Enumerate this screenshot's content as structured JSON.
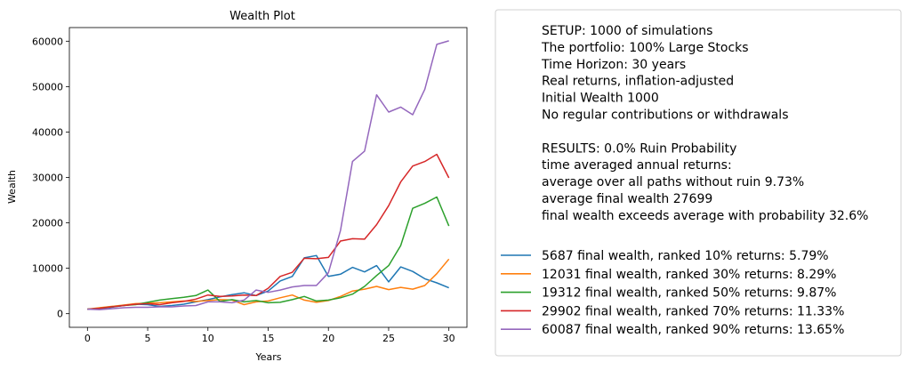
{
  "chart_data": {
    "type": "line",
    "title": "Wealth Plot",
    "xlabel": "Years",
    "ylabel": "Wealth",
    "xlim": [
      -1.5,
      31.5
    ],
    "ylim": [
      -3000,
      63000
    ],
    "xticks": [
      0,
      5,
      10,
      15,
      20,
      25,
      30
    ],
    "yticks": [
      0,
      10000,
      20000,
      30000,
      40000,
      50000,
      60000
    ],
    "x": [
      0,
      1,
      2,
      3,
      4,
      5,
      6,
      7,
      8,
      9,
      10,
      11,
      12,
      13,
      14,
      15,
      16,
      17,
      18,
      19,
      20,
      21,
      22,
      23,
      24,
      25,
      26,
      27,
      28,
      29,
      30
    ],
    "series": [
      {
        "name": "5687 final wealth, ranked 10% returns: 5.79%",
        "color": "#1f77b4",
        "values": [
          1000,
          1100,
          1400,
          1800,
          2100,
          2000,
          1600,
          1800,
          2100,
          2600,
          3100,
          3700,
          4200,
          4600,
          4000,
          5000,
          7200,
          8200,
          12300,
          12800,
          8200,
          8700,
          10200,
          9200,
          10600,
          7000,
          10300,
          9300,
          7700,
          6800,
          5687
        ]
      },
      {
        "name": "12031 final wealth, ranked 30% returns: 8.29%",
        "color": "#ff7f0e",
        "values": [
          1000,
          1300,
          1600,
          1900,
          2200,
          2300,
          2400,
          2600,
          2800,
          2700,
          2900,
          3100,
          3000,
          2000,
          2600,
          2800,
          3500,
          4100,
          3000,
          2500,
          2900,
          3800,
          5000,
          5400,
          6000,
          5300,
          5800,
          5400,
          6200,
          8800,
          12031
        ]
      },
      {
        "name": "19312 final wealth, ranked 50% returns: 9.87%",
        "color": "#2ca02c",
        "values": [
          1000,
          1200,
          1500,
          1800,
          2000,
          2500,
          3000,
          3300,
          3600,
          4000,
          5200,
          2700,
          3100,
          2600,
          2900,
          2400,
          2500,
          3100,
          3800,
          2800,
          3000,
          3500,
          4300,
          6000,
          8400,
          10600,
          15000,
          23200,
          24300,
          25700,
          19312
        ]
      },
      {
        "name": "29902 final wealth, ranked 70% returns: 11.33%",
        "color": "#d62728",
        "values": [
          1000,
          1200,
          1500,
          1800,
          2100,
          2200,
          2000,
          2400,
          2700,
          3200,
          4100,
          3800,
          3900,
          4100,
          4000,
          5600,
          8200,
          9100,
          12200,
          12100,
          12400,
          16000,
          16500,
          16400,
          19600,
          23800,
          29000,
          32500,
          33500,
          35100,
          29902
        ]
      },
      {
        "name": "60087 final wealth, ranked 90% returns: 13.65%",
        "color": "#9467bd",
        "values": [
          1000,
          900,
          1100,
          1300,
          1400,
          1400,
          1500,
          1500,
          1700,
          1800,
          2600,
          2600,
          2400,
          3000,
          5200,
          4700,
          5200,
          5900,
          6200,
          6200,
          9000,
          18300,
          33500,
          35800,
          48200,
          44400,
          45500,
          43800,
          49400,
          59300,
          60087
        ]
      }
    ]
  },
  "setup_text": [
    "SETUP: 1000 of simulations",
    "The portfolio: 100% Large Stocks",
    "Time Horizon: 30 years",
    "Real returns, inflation-adjusted",
    "Initial Wealth 1000",
    "No regular contributions or withdrawals",
    "",
    "RESULTS: 0.0% Ruin Probability",
    "time averaged annual returns:",
    "average over all paths without ruin 9.73%",
    "average final wealth 27699",
    "final wealth exceeds average with probability 32.6%"
  ]
}
